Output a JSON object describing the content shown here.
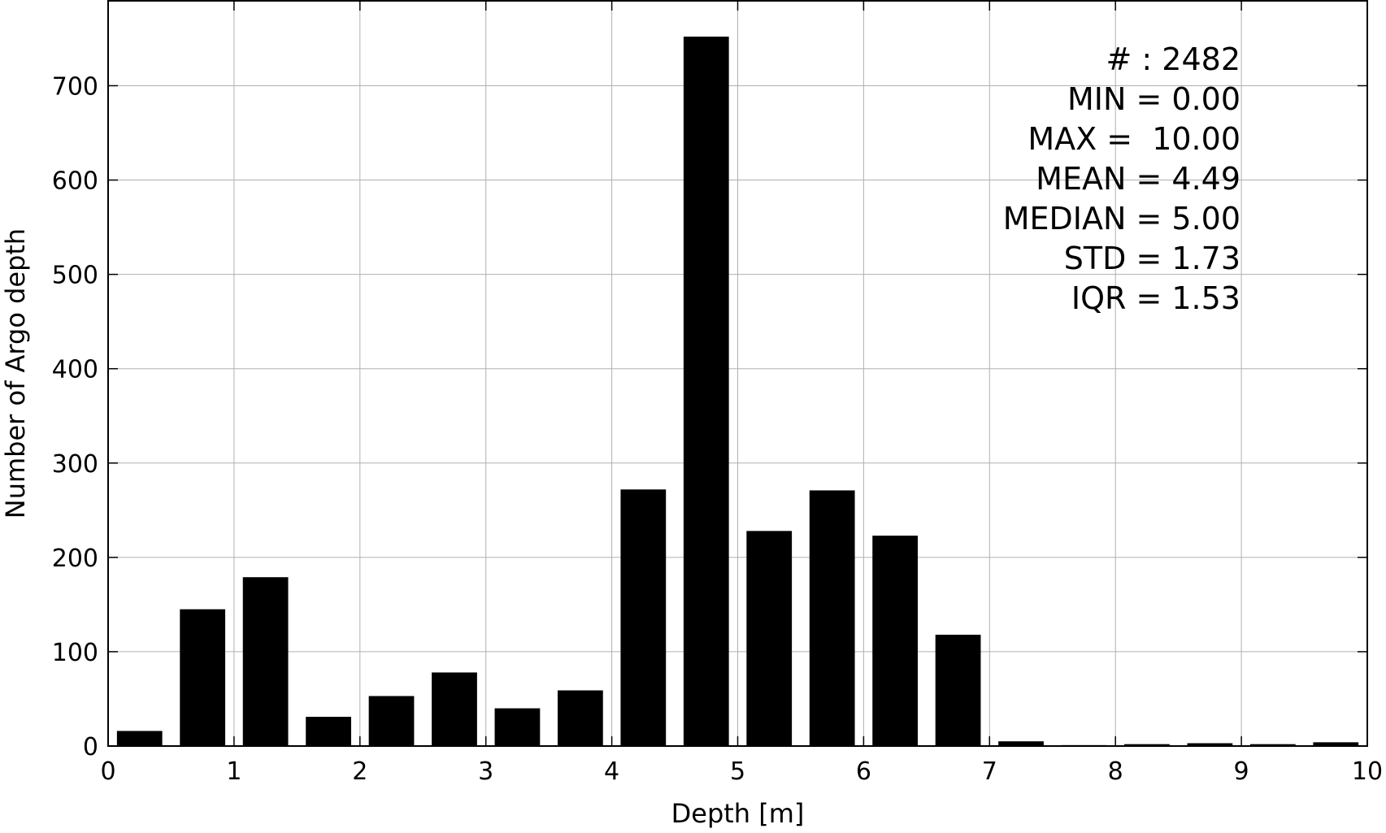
{
  "chart_data": {
    "type": "bar",
    "title": "",
    "xlabel": "Depth [m]",
    "ylabel": "Number of Argo depth",
    "xlim": [
      0,
      10
    ],
    "ylim": [
      0,
      790
    ],
    "grid": true,
    "bar_color": "#000000",
    "grid_color": "#b0b0b0",
    "bin_edges": [
      0,
      0.5,
      1,
      1.5,
      2,
      2.5,
      3,
      3.5,
      4,
      4.5,
      5,
      5.5,
      6,
      6.5,
      7,
      7.5,
      8,
      8.5,
      9,
      9.5,
      10
    ],
    "values": [
      16,
      145,
      179,
      31,
      53,
      78,
      40,
      59,
      272,
      752,
      228,
      271,
      223,
      118,
      5,
      1,
      2,
      3,
      2,
      4
    ],
    "x_ticks": [
      "0",
      "1",
      "2",
      "3",
      "4",
      "5",
      "6",
      "7",
      "8",
      "9",
      "10"
    ],
    "y_ticks": [
      "0",
      "100",
      "200",
      "300",
      "400",
      "500",
      "600",
      "700"
    ],
    "stats": [
      "# : 2482",
      "MIN = 0.00",
      "MAX =  10.00",
      "MEAN = 4.49",
      "MEDIAN = 5.00",
      "STD = 1.73",
      "IQR = 1.53"
    ]
  }
}
